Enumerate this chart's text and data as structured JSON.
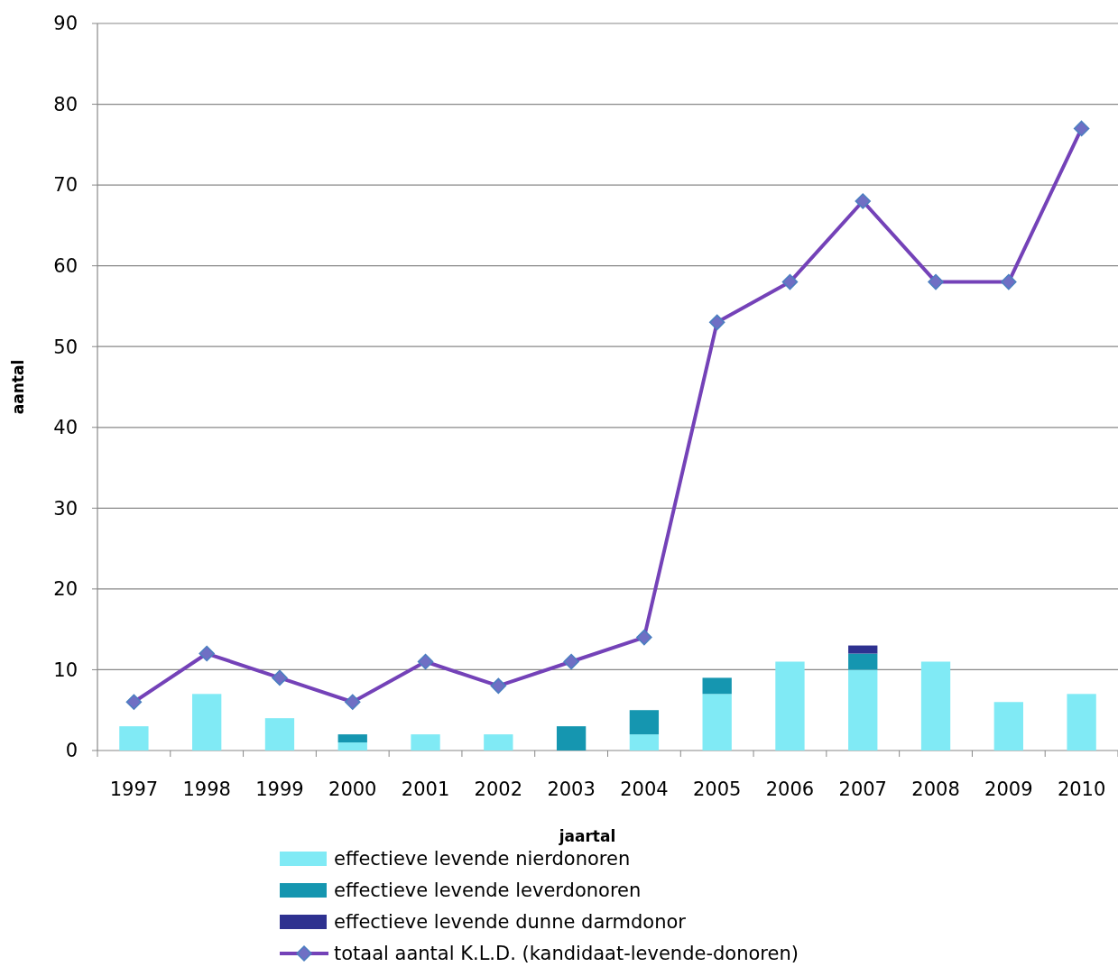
{
  "chart_data": {
    "type": "bar",
    "stacked": true,
    "xlabel": "jaartal",
    "ylabel": "aantal",
    "categories": [
      "1997",
      "1998",
      "1999",
      "2000",
      "2001",
      "2002",
      "2003",
      "2004",
      "2005",
      "2006",
      "2007",
      "2008",
      "2009",
      "2010"
    ],
    "series": [
      {
        "name": "effectieve levende nierdonoren",
        "color": "#80eaf5",
        "values": [
          3,
          7,
          4,
          1,
          2,
          2,
          0,
          2,
          7,
          11,
          10,
          11,
          6,
          7
        ]
      },
      {
        "name": "effectieve levende leverdonoren",
        "color": "#1596b0",
        "values": [
          0,
          0,
          0,
          1,
          0,
          0,
          3,
          3,
          2,
          0,
          2,
          0,
          0,
          0
        ]
      },
      {
        "name": "effectieve levende dunne darmdonor",
        "color": "#2e3190",
        "values": [
          0,
          0,
          0,
          0,
          0,
          0,
          0,
          0,
          0,
          0,
          1,
          0,
          0,
          0
        ]
      },
      {
        "name": "totaal aantal K.L.D. (kandidaat-levende-donoren)",
        "type": "line",
        "color": "#7442b8",
        "values": [
          6,
          12,
          9,
          6,
          11,
          8,
          11,
          14,
          53,
          58,
          68,
          58,
          58,
          77
        ]
      }
    ],
    "marker": "diamond",
    "line_style": "solid",
    "ylim": [
      0,
      90
    ],
    "yticks": [
      0,
      10,
      20,
      30,
      40,
      50,
      60,
      70,
      80,
      90
    ],
    "grid": "y",
    "legend": "bottom"
  }
}
